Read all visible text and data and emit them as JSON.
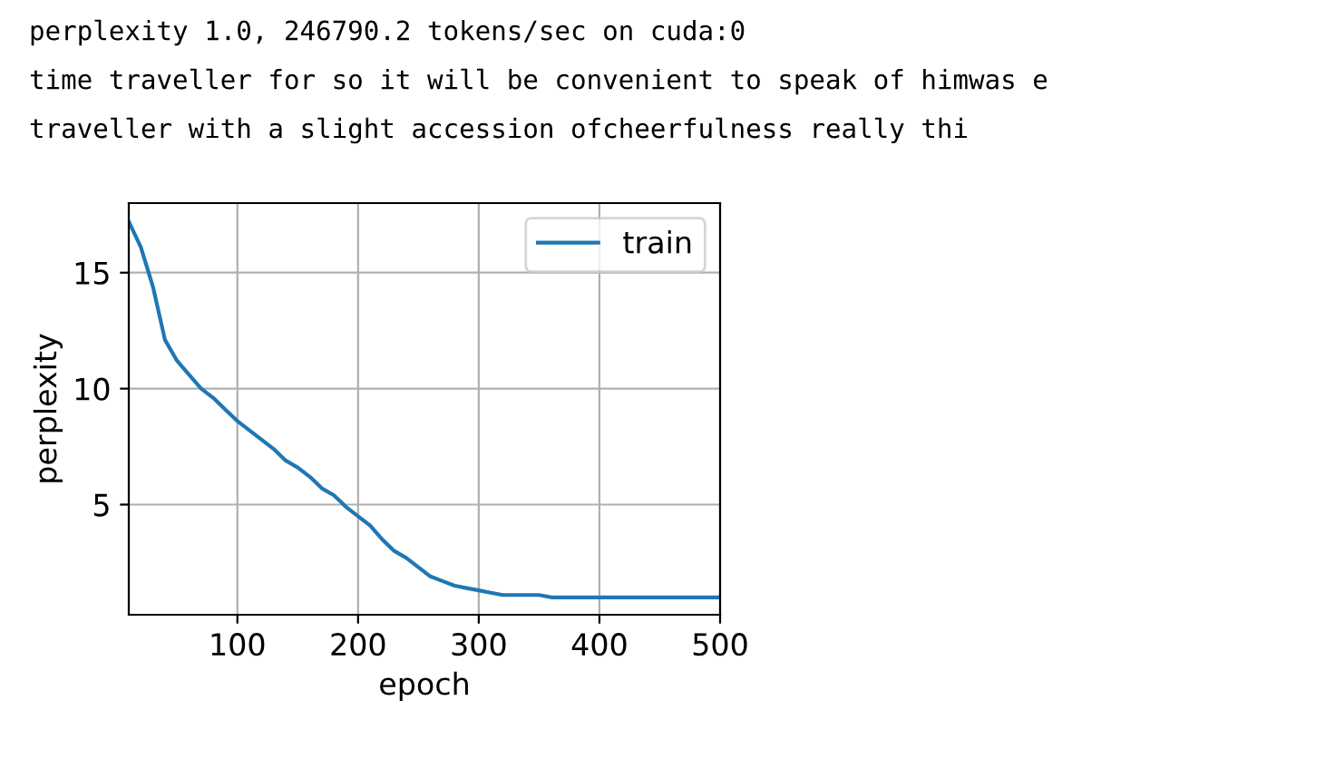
{
  "chart_data": {
    "type": "line",
    "annotations": [
      "perplexity 1.0, 246790.2 tokens/sec on cuda:0",
      "time traveller for so it will be convenient to speak of himwas e",
      "traveller with a slight accession ofcheerfulness really thi"
    ],
    "xlabel": "epoch",
    "ylabel": "perplexity",
    "x": [
      10,
      20,
      30,
      40,
      50,
      60,
      70,
      80,
      90,
      100,
      110,
      120,
      130,
      140,
      150,
      160,
      170,
      180,
      190,
      200,
      210,
      220,
      230,
      240,
      250,
      260,
      270,
      280,
      290,
      300,
      310,
      320,
      330,
      340,
      350,
      360,
      370,
      380,
      390,
      400,
      410,
      420,
      430,
      440,
      450,
      460,
      470,
      480,
      490,
      500
    ],
    "series": [
      {
        "name": "train",
        "color": "#1f77b4",
        "values": [
          17.2,
          16.1,
          14.4,
          12.1,
          11.2,
          10.6,
          10.0,
          9.6,
          9.1,
          8.6,
          8.2,
          7.8,
          7.4,
          6.9,
          6.6,
          6.2,
          5.7,
          5.4,
          4.9,
          4.5,
          4.1,
          3.5,
          3.0,
          2.7,
          2.3,
          1.9,
          1.7,
          1.5,
          1.4,
          1.3,
          1.2,
          1.1,
          1.1,
          1.1,
          1.1,
          1.0,
          1.0,
          1.0,
          1.0,
          1.0,
          1.0,
          1.0,
          1.0,
          1.0,
          1.0,
          1.0,
          1.0,
          1.0,
          1.0,
          1.0
        ]
      }
    ],
    "xlim": [
      10,
      500
    ],
    "xticks": [
      100,
      200,
      300,
      400,
      500
    ],
    "ylim": [
      0.25,
      18
    ],
    "yticks": [
      5,
      10,
      15
    ],
    "grid": true,
    "legend": "upper right"
  }
}
